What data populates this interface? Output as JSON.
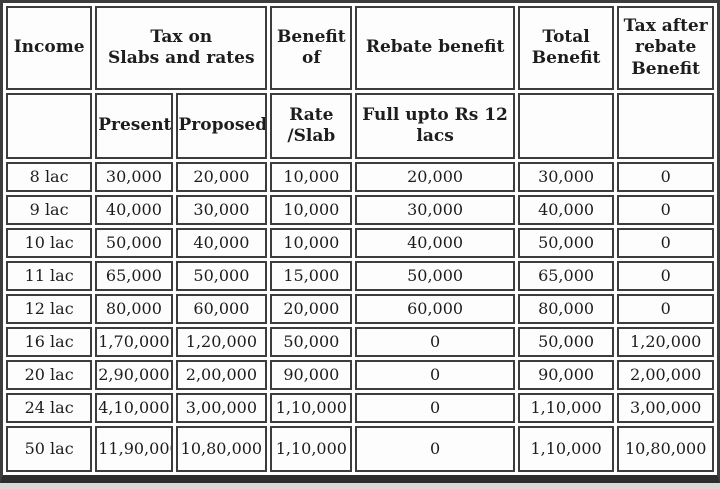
{
  "colors": {
    "cell_border": "#3d3d3d",
    "text": "#1d1d1d",
    "cell_background": "#fdfdfd",
    "bottom_bar": "#2d2d2d",
    "page_strip": "#d9d9d9"
  },
  "chart_data": {
    "type": "table",
    "headers": {
      "income": "Income",
      "tax_on_slabs": "Tax on\nSlabs and rates",
      "benefit_of": "Benefit\nof",
      "rebate_benefit": "Rebate benefit",
      "total_benefit": "Total\nBenefit",
      "tax_after_rebate": "Tax after\nrebate\nBenefit",
      "present": "Present",
      "proposed": "Proposed",
      "rate_slab": "Rate\n/Slab",
      "rebate_full": "Full upto Rs 12\nlacs",
      "blank": ""
    },
    "column_keys": [
      "income",
      "present",
      "proposed",
      "rate-slab",
      "rebate-benefit",
      "total-benefit",
      "tax-after-rebate"
    ],
    "rows": [
      [
        "8 lac",
        "30,000",
        "20,000",
        "10,000",
        "20,000",
        "30,000",
        "0"
      ],
      [
        "9 lac",
        "40,000",
        "30,000",
        "10,000",
        "30,000",
        "40,000",
        "0"
      ],
      [
        "10 lac",
        "50,000",
        "40,000",
        "10,000",
        "40,000",
        "50,000",
        "0"
      ],
      [
        "11 lac",
        "65,000",
        "50,000",
        "15,000",
        "50,000",
        "65,000",
        "0"
      ],
      [
        "12 lac",
        "80,000",
        "60,000",
        "20,000",
        "60,000",
        "80,000",
        "0"
      ],
      [
        "16 lac",
        "1,70,000",
        "1,20,000",
        "50,000",
        "0",
        "50,000",
        "1,20,000"
      ],
      [
        "20 lac",
        "2,90,000",
        "2,00,000",
        "90,000",
        "0",
        "90,000",
        "2,00,000"
      ],
      [
        "24 lac",
        "4,10,000",
        "3,00,000",
        "1,10,000",
        "0",
        "1,10,000",
        "3,00,000"
      ],
      [
        "50 lac",
        "11,90,000",
        "10,80,000",
        "1,10,000",
        "0",
        "1,10,000",
        "10,80,000"
      ]
    ]
  }
}
